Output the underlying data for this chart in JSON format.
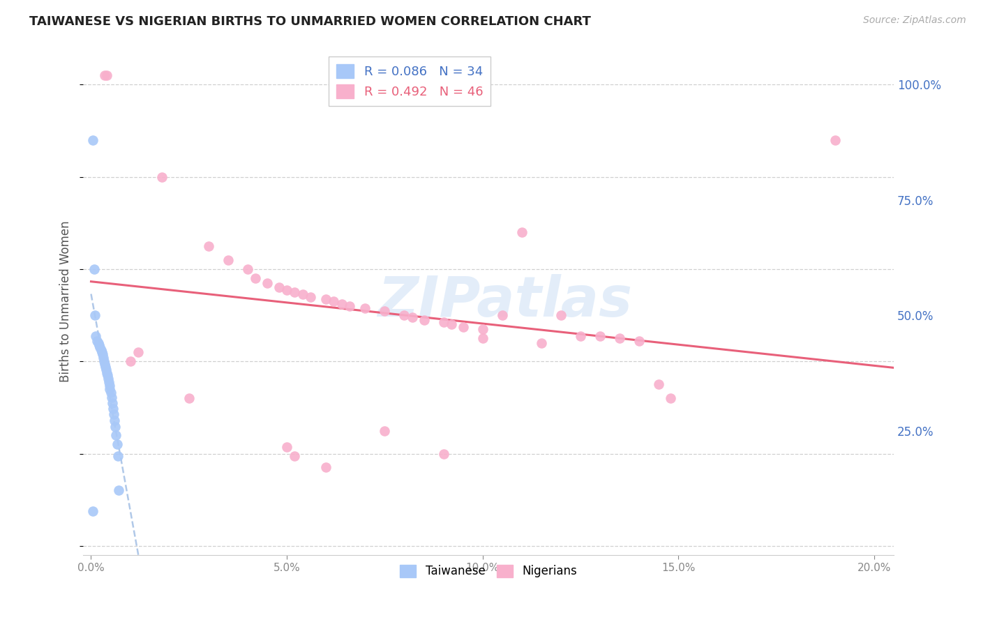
{
  "title": "TAIWANESE VS NIGERIAN BIRTHS TO UNMARRIED WOMEN CORRELATION CHART",
  "source": "Source: ZipAtlas.com",
  "ylabel": "Births to Unmarried Women",
  "yticks": [
    "100.0%",
    "75.0%",
    "50.0%",
    "25.0%"
  ],
  "ytick_vals": [
    1.0,
    0.75,
    0.5,
    0.25
  ],
  "xtick_vals": [
    0.0,
    0.05,
    0.1,
    0.15,
    0.2
  ],
  "xlim": [
    -0.002,
    0.205
  ],
  "ylim": [
    -0.02,
    1.08
  ],
  "taiwan_R": "0.086",
  "taiwan_N": "34",
  "nigeria_R": "0.492",
  "nigeria_N": "46",
  "taiwan_color": "#a8c8f8",
  "nigeria_color": "#f8b0cc",
  "taiwan_line_color": "#4472c4",
  "nigeria_line_color": "#e8607a",
  "taiwan_scatter": [
    [
      0.0005,
      0.88
    ],
    [
      0.0008,
      0.6
    ],
    [
      0.001,
      0.5
    ],
    [
      0.0012,
      0.455
    ],
    [
      0.0015,
      0.445
    ],
    [
      0.0018,
      0.44
    ],
    [
      0.002,
      0.435
    ],
    [
      0.0022,
      0.43
    ],
    [
      0.0025,
      0.425
    ],
    [
      0.0028,
      0.42
    ],
    [
      0.003,
      0.415
    ],
    [
      0.0032,
      0.408
    ],
    [
      0.0033,
      0.4
    ],
    [
      0.0035,
      0.395
    ],
    [
      0.0036,
      0.388
    ],
    [
      0.0038,
      0.382
    ],
    [
      0.004,
      0.375
    ],
    [
      0.0042,
      0.37
    ],
    [
      0.0043,
      0.362
    ],
    [
      0.0045,
      0.355
    ],
    [
      0.0047,
      0.348
    ],
    [
      0.0048,
      0.34
    ],
    [
      0.005,
      0.332
    ],
    [
      0.0052,
      0.322
    ],
    [
      0.0054,
      0.31
    ],
    [
      0.0056,
      0.298
    ],
    [
      0.0058,
      0.285
    ],
    [
      0.006,
      0.272
    ],
    [
      0.0062,
      0.258
    ],
    [
      0.0064,
      0.24
    ],
    [
      0.0066,
      0.22
    ],
    [
      0.0068,
      0.195
    ],
    [
      0.007,
      0.12
    ],
    [
      0.0005,
      0.075
    ]
  ],
  "nigeria_scatter": [
    [
      0.0035,
      1.02
    ],
    [
      0.004,
      1.02
    ],
    [
      0.018,
      0.8
    ],
    [
      0.03,
      0.65
    ],
    [
      0.035,
      0.62
    ],
    [
      0.04,
      0.6
    ],
    [
      0.042,
      0.58
    ],
    [
      0.045,
      0.57
    ],
    [
      0.048,
      0.56
    ],
    [
      0.05,
      0.555
    ],
    [
      0.052,
      0.55
    ],
    [
      0.054,
      0.545
    ],
    [
      0.056,
      0.54
    ],
    [
      0.06,
      0.535
    ],
    [
      0.062,
      0.53
    ],
    [
      0.064,
      0.525
    ],
    [
      0.066,
      0.52
    ],
    [
      0.07,
      0.515
    ],
    [
      0.075,
      0.51
    ],
    [
      0.08,
      0.5
    ],
    [
      0.082,
      0.495
    ],
    [
      0.085,
      0.49
    ],
    [
      0.09,
      0.485
    ],
    [
      0.092,
      0.48
    ],
    [
      0.095,
      0.475
    ],
    [
      0.1,
      0.47
    ],
    [
      0.105,
      0.5
    ],
    [
      0.11,
      0.68
    ],
    [
      0.12,
      0.5
    ],
    [
      0.125,
      0.455
    ],
    [
      0.13,
      0.455
    ],
    [
      0.135,
      0.45
    ],
    [
      0.14,
      0.445
    ],
    [
      0.145,
      0.35
    ],
    [
      0.148,
      0.32
    ],
    [
      0.05,
      0.215
    ],
    [
      0.052,
      0.195
    ],
    [
      0.075,
      0.25
    ],
    [
      0.09,
      0.2
    ],
    [
      0.19,
      0.88
    ],
    [
      0.1,
      0.45
    ],
    [
      0.115,
      0.44
    ],
    [
      0.01,
      0.4
    ],
    [
      0.012,
      0.42
    ],
    [
      0.06,
      0.17
    ],
    [
      0.025,
      0.32
    ]
  ],
  "watermark": "ZIPatlas",
  "background_color": "#ffffff",
  "grid_color": "#d0d0d0",
  "title_color": "#222222",
  "axis_label_color": "#4472c4"
}
